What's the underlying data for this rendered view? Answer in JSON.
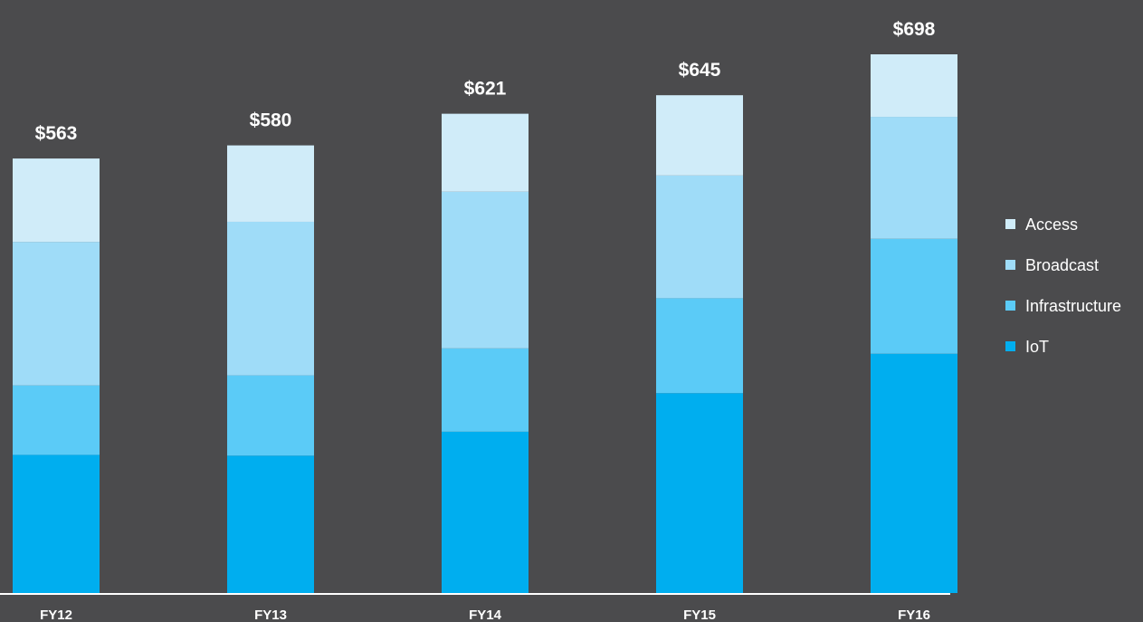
{
  "chart_data": {
    "type": "bar",
    "stacked": true,
    "title": "",
    "xlabel": "",
    "ylabel": "",
    "categories": [
      "FY12",
      "FY13",
      "FY14",
      "FY15",
      "FY16"
    ],
    "totals": [
      563,
      580,
      621,
      645,
      698
    ],
    "total_labels": [
      "$563",
      "$580",
      "$621",
      "$645",
      "$698"
    ],
    "series": [
      {
        "name": "IoT",
        "color": "#00aeef",
        "values": [
          179,
          178,
          209,
          259,
          310
        ]
      },
      {
        "name": "Broadcast",
        "color": "#9fdcf8",
        "values": [
          186,
          199,
          203,
          159,
          158
        ]
      },
      {
        "name": "Infrastructure",
        "color": "#5bcbf7",
        "values": [
          90,
          104,
          108,
          123,
          149
        ]
      },
      {
        "name": "Access",
        "color": "#d0ecf9",
        "values": [
          108,
          99,
          101,
          104,
          81
        ]
      }
    ],
    "stack_order": [
      "IoT",
      "Infrastructure",
      "Broadcast",
      "Access"
    ],
    "legend_order": [
      "Access",
      "Broadcast",
      "Infrastructure",
      "IoT"
    ],
    "legend_position": "right",
    "grid": false,
    "ylim": [
      0,
      700
    ]
  }
}
